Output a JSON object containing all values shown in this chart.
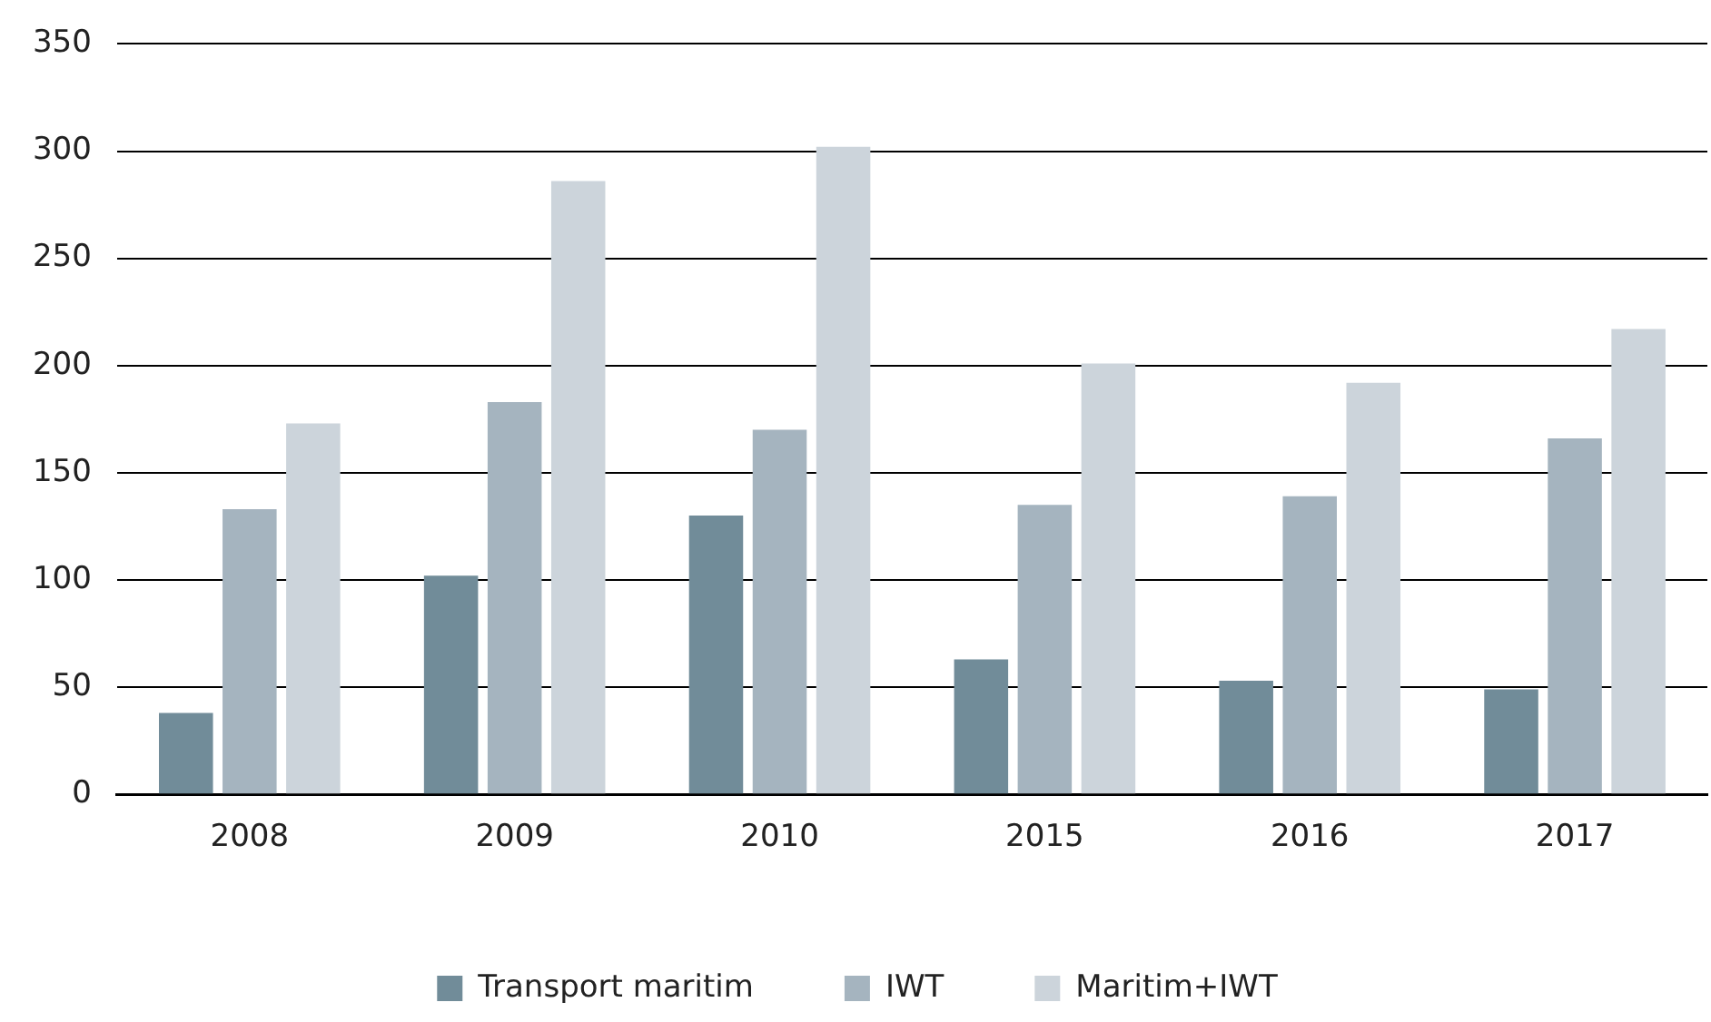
{
  "chart_data": {
    "type": "bar",
    "categories": [
      "2008",
      "2009",
      "2010",
      "2015",
      "2016",
      "2017"
    ],
    "series": [
      {
        "name": "Transport maritim",
        "color": "#718c99",
        "values": [
          38,
          102,
          130,
          63,
          53,
          49
        ]
      },
      {
        "name": "IWT",
        "color": "#a5b4bf",
        "values": [
          133,
          183,
          170,
          135,
          139,
          166
        ]
      },
      {
        "name": "Maritim+IWT",
        "color": "#ccd4db",
        "values": [
          173,
          286,
          302,
          201,
          192,
          217
        ]
      }
    ],
    "ylim": [
      0,
      350
    ],
    "yticks": [
      0,
      50,
      100,
      150,
      200,
      250,
      300,
      350
    ],
    "grid": "y",
    "legend": "bottom"
  }
}
